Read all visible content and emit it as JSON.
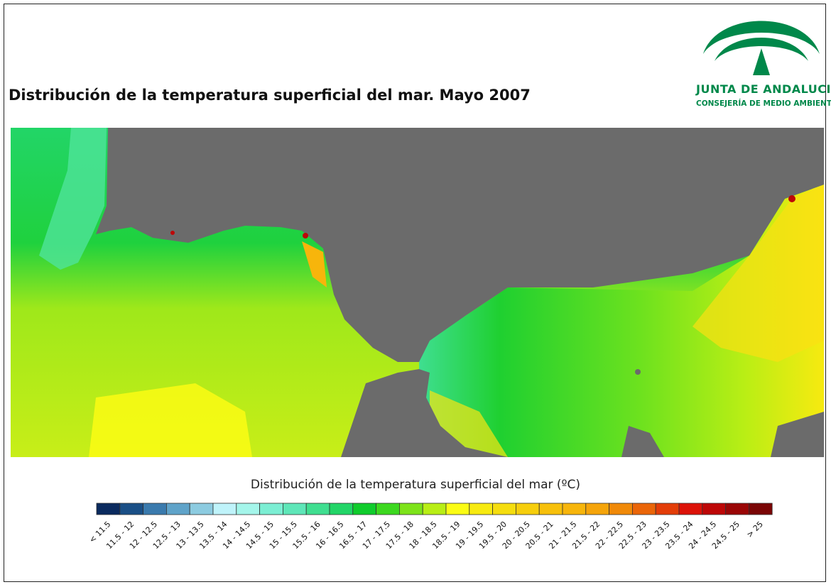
{
  "header": {
    "title": "Distribución de la temperatura superficial del mar. Mayo 2007"
  },
  "logo": {
    "name": "JUNTA DE ANDALUCIA",
    "subtitle": "CONSEJERÍA DE MEDIO AMBIENTE",
    "color": "#00884a"
  },
  "map": {
    "land_color": "#6b6b6b",
    "description_colors": {
      "atlantic_north": "#1fd25a",
      "atlantic_south": "#b5e61d",
      "alboran_west": "#2fdc6e",
      "alboran_east": "#6ee21e",
      "coastal_warm": "#ffe600",
      "hotspot": "#c8000a"
    }
  },
  "legend": {
    "title": "Distribución de la temperatura superficial del mar (ºC)",
    "classes": [
      {
        "label": "< 11.5",
        "color": "#0a2a5e"
      },
      {
        "label": "11.5 - 12",
        "color": "#1a4f86"
      },
      {
        "label": "12 - 12.5",
        "color": "#3a7aad"
      },
      {
        "label": "12.5 - 13",
        "color": "#5fa3c9"
      },
      {
        "label": "13 - 13.5",
        "color": "#8ccbe0"
      },
      {
        "label": "13.5 - 14",
        "color": "#bff3fa"
      },
      {
        "label": "14 - 14.5",
        "color": "#a4f5ea"
      },
      {
        "label": "14.5 - 15",
        "color": "#7beed3"
      },
      {
        "label": "15 - 15.5",
        "color": "#5ee6b8"
      },
      {
        "label": "15.5 - 16",
        "color": "#3fde90"
      },
      {
        "label": "16 - 16.5",
        "color": "#22d567"
      },
      {
        "label": "16.5 - 17",
        "color": "#0fcc2c"
      },
      {
        "label": "17 - 17.5",
        "color": "#3cd81f"
      },
      {
        "label": "17.5 - 18",
        "color": "#7de31a"
      },
      {
        "label": "18 - 18.5",
        "color": "#b8ee15"
      },
      {
        "label": "18.5 - 19",
        "color": "#fbfc14"
      },
      {
        "label": "19 - 19.5",
        "color": "#f7ea10"
      },
      {
        "label": "19.5 - 20",
        "color": "#f5dd0e"
      },
      {
        "label": "20 - 20.5",
        "color": "#f6ce0c"
      },
      {
        "label": "20.5 - 21",
        "color": "#f7c00b"
      },
      {
        "label": "21 - 21.5",
        "color": "#f7b50b"
      },
      {
        "label": "21.5 - 22",
        "color": "#f5a40a"
      },
      {
        "label": "22 - 22.5",
        "color": "#f08908"
      },
      {
        "label": "22.5 - 23",
        "color": "#ea6508"
      },
      {
        "label": "23 - 23.5",
        "color": "#e33d08"
      },
      {
        "label": "23.5 - 24",
        "color": "#dc1208"
      },
      {
        "label": "24 - 24.5",
        "color": "#bd0707"
      },
      {
        "label": "24.5 - 25",
        "color": "#9a0606"
      },
      {
        "label": "> 25",
        "color": "#7a0505"
      }
    ]
  }
}
